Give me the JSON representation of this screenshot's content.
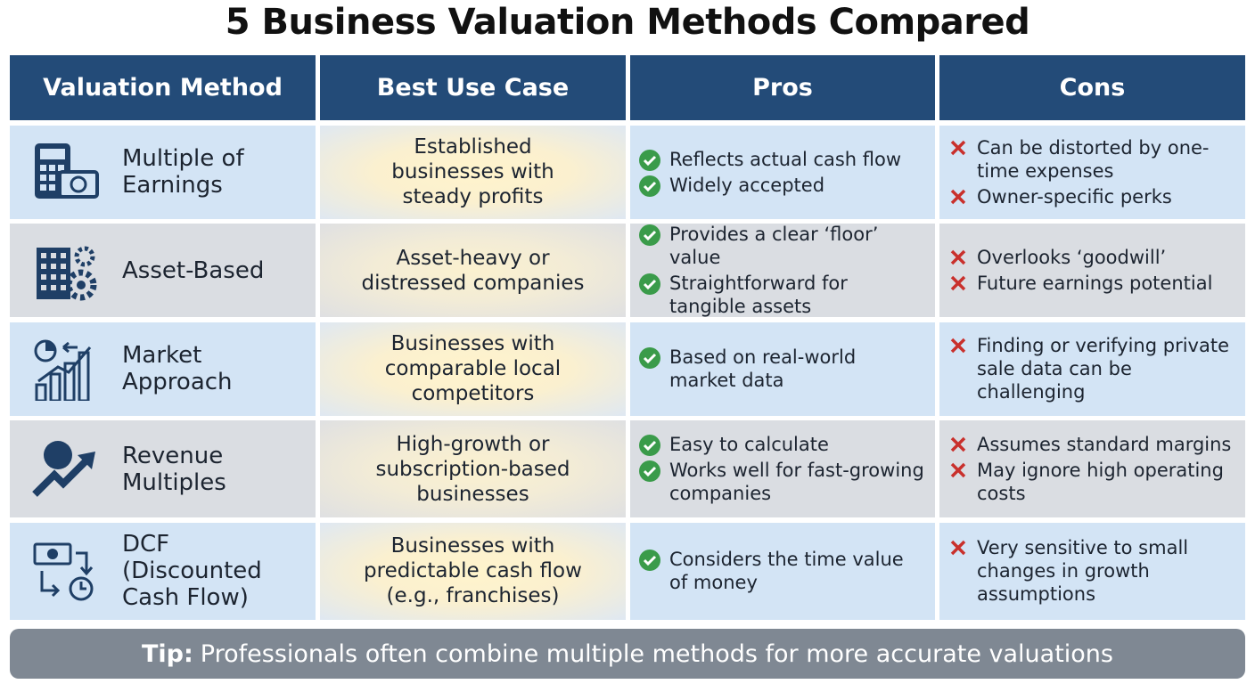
{
  "title": "5 Business Valuation Methods Compared",
  "table": {
    "headers": [
      "Valuation Method",
      "Best Use Case",
      "Pros",
      "Cons"
    ],
    "rows": [
      {
        "method": "Multiple of Earnings",
        "use_case": "Established businesses with steady profits",
        "pros": [
          "Reflects actual cash flow",
          "Widely accepted"
        ],
        "cons": [
          "Can be distorted by one-time expenses",
          "Owner-specific perks"
        ]
      },
      {
        "method": "Asset-Based",
        "use_case": "Asset-heavy or distressed companies",
        "pros": [
          "Provides a clear ‘floor’ value",
          "Straightforward for tangible assets"
        ],
        "cons": [
          "Overlooks ‘goodwill’",
          "Future earnings potential"
        ]
      },
      {
        "method": "Market Approach",
        "use_case": "Businesses with comparable local competitors",
        "pros": [
          "Based on real-world market data"
        ],
        "cons": [
          "Finding or verifying private sale data can be challenging"
        ]
      },
      {
        "method": "Revenue Multiples",
        "use_case": "High-growth or subscription-based businesses",
        "pros": [
          "Easy to calculate",
          "Works well for fast-growing companies"
        ],
        "cons": [
          "Assumes standard margins",
          "May ignore high operating costs"
        ]
      },
      {
        "method": "DCF (Discounted Cash Flow)",
        "use_case": "Businesses with predictable cash flow (e.g., franchises)",
        "pros": [
          "Considers the time value of money"
        ],
        "cons": [
          "Very sensitive to small changes in growth assumptions"
        ]
      }
    ]
  },
  "tip": {
    "label": "Tip:",
    "text": "Professionals often combine multiple methods for more accurate valuations"
  }
}
